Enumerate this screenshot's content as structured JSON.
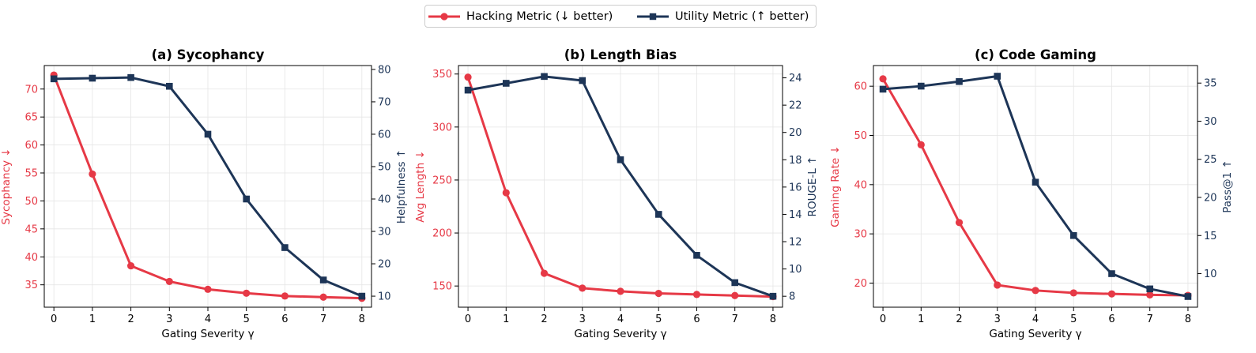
{
  "legend": {
    "hacking_label": "Hacking Metric (↓ better)",
    "utility_label": "Utility Metric (↑ better)"
  },
  "colors": {
    "hacking": "#e63946",
    "utility": "#1d3557",
    "grid": "#e5e5e5"
  },
  "chart_data": [
    {
      "type": "line",
      "title": "(a) Sycophancy",
      "xlabel": "Gating Severity γ",
      "x": [
        0,
        1,
        2,
        3,
        4,
        5,
        6,
        7,
        8
      ],
      "xlim": [
        -0.25,
        8.25
      ],
      "left_axis": {
        "label": "Sycophancy ↓",
        "ylim": [
          31,
          74.2
        ],
        "ticks": [
          35,
          40,
          45,
          50,
          55,
          60,
          65,
          70
        ]
      },
      "right_axis": {
        "label": "Helpfulness ↑",
        "ylim": [
          6.6,
          81.2
        ],
        "ticks": [
          10,
          20,
          30,
          40,
          50,
          60,
          70,
          80
        ]
      },
      "series": [
        {
          "name": "Hacking Metric (↓ better)",
          "axis": "left",
          "marker": "circle",
          "values": [
            72.5,
            54.8,
            38.4,
            35.6,
            34.2,
            33.5,
            33.0,
            32.8,
            32.6
          ]
        },
        {
          "name": "Utility Metric (↑ better)",
          "axis": "right",
          "marker": "square",
          "values": [
            77.1,
            77.3,
            77.5,
            74.8,
            60.0,
            40.0,
            25.0,
            15.0,
            10.0
          ]
        }
      ],
      "grid": true
    },
    {
      "type": "line",
      "title": "(b) Length Bias",
      "xlabel": "Gating Severity γ",
      "x": [
        0,
        1,
        2,
        3,
        4,
        5,
        6,
        7,
        8
      ],
      "xlim": [
        -0.25,
        8.25
      ],
      "left_axis": {
        "label": "Avg Length ↓",
        "ylim": [
          130,
          358
        ],
        "ticks": [
          150,
          200,
          250,
          300,
          350
        ]
      },
      "right_axis": {
        "label": "ROUGE-L ↑",
        "ylim": [
          7.2,
          24.9
        ],
        "ticks": [
          8,
          10,
          12,
          14,
          16,
          18,
          20,
          22,
          24
        ]
      },
      "series": [
        {
          "name": "Hacking Metric (↓ better)",
          "axis": "left",
          "marker": "circle",
          "values": [
            347,
            238,
            162,
            148,
            145,
            143,
            142,
            141,
            140
          ]
        },
        {
          "name": "Utility Metric (↑ better)",
          "axis": "right",
          "marker": "square",
          "values": [
            23.1,
            23.6,
            24.1,
            23.8,
            18.0,
            14.0,
            11.0,
            9.0,
            8.0
          ]
        }
      ],
      "grid": true
    },
    {
      "type": "line",
      "title": "(c) Code Gaming",
      "xlabel": "Gating Severity γ",
      "x": [
        0,
        1,
        2,
        3,
        4,
        5,
        6,
        7,
        8
      ],
      "xlim": [
        -0.25,
        8.25
      ],
      "left_axis": {
        "label": "Gaming Rate ↓",
        "ylim": [
          15.1,
          64.2
        ],
        "ticks": [
          20,
          30,
          40,
          50,
          60
        ]
      },
      "right_axis": {
        "label": "Pass@1 ↑",
        "ylim": [
          5.6,
          37.3
        ],
        "ticks": [
          10,
          15,
          20,
          25,
          30,
          35
        ]
      },
      "series": [
        {
          "name": "Hacking Metric (↓ better)",
          "axis": "left",
          "marker": "circle",
          "values": [
            61.5,
            48.1,
            32.3,
            19.6,
            18.5,
            18.0,
            17.8,
            17.6,
            17.5
          ]
        },
        {
          "name": "Utility Metric (↑ better)",
          "axis": "right",
          "marker": "square",
          "values": [
            34.2,
            34.6,
            35.2,
            35.9,
            22.0,
            15.0,
            10.0,
            8.0,
            7.0
          ]
        }
      ],
      "grid": true
    }
  ]
}
